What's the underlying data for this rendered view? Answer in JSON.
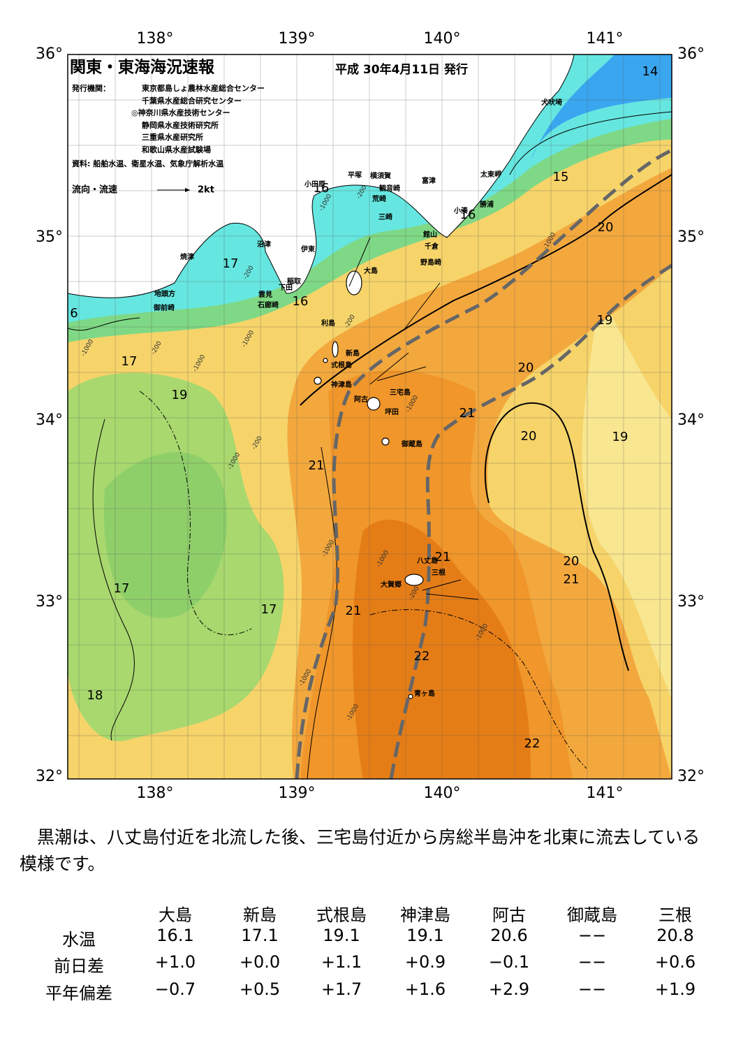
{
  "header": {
    "title": "関東・東海海況速報",
    "issue_date": "平成 30年4月11日 発行",
    "publishers_label": "発行機関：",
    "publishers": [
      "東京都島しょ農林水産総合センター",
      "千葉県水産総合研究センター",
      "◎神奈川県水産技術センター",
      "静岡県水産技術研究所",
      "三重県水産研究所",
      "和歌山県水産試験場"
    ],
    "sources": "資料: 船舶水温、衛星水温、気象庁解析水温",
    "current_legend": "流向・流速",
    "current_scale": "2kt"
  },
  "map": {
    "lon_labels": [
      "138°",
      "139°",
      "140°",
      "141°"
    ],
    "lat_labels": [
      "36°",
      "35°",
      "34°",
      "33°",
      "32°"
    ],
    "isotherm_labels": [
      14,
      15,
      16,
      16,
      20,
      17,
      16,
      6,
      19,
      17,
      20,
      19,
      21,
      20,
      19,
      21,
      21,
      20,
      21,
      17,
      17,
      21,
      22,
      18,
      22
    ],
    "place_names": [
      "犬吠埼",
      "太東岬",
      "勝浦",
      "小湊",
      "富津",
      "館山",
      "千倉",
      "野島崎",
      "横須賀",
      "観音崎",
      "荒崎",
      "三崎",
      "平塚",
      "小田原",
      "沼津",
      "伊東",
      "焼津",
      "大島",
      "稲取",
      "下田",
      "雲見",
      "石廊崎",
      "地頭方",
      "御前崎",
      "利島",
      "新島",
      "式根島",
      "神津島",
      "三宅島",
      "阿古",
      "坪田",
      "御蔵島",
      "八丈島",
      "三根",
      "大賀郷",
      "青ヶ島"
    ],
    "depth_labels": [
      "-200",
      "-200",
      "-200",
      "-200",
      "-200",
      "-200",
      "-1000",
      "-1000",
      "-1000",
      "-1000",
      "-1000",
      "-1000",
      "-1000",
      "-1000",
      "-1000",
      "-1000",
      "-1000",
      "-1000"
    ]
  },
  "note": "黒潮は、八丈島付近を北流した後、三宅島付近から房総半島沖を北東に流去している模様です。",
  "table": {
    "columns": [
      "大島",
      "新島",
      "式根島",
      "神津島",
      "阿古",
      "御蔵島",
      "三根"
    ],
    "rows": [
      {
        "label": "水温",
        "values": [
          "16.1",
          "17.1",
          "19.1",
          "19.1",
          "20.6",
          "−−",
          "20.8"
        ]
      },
      {
        "label": "前日差",
        "values": [
          "+1.0",
          "+0.0",
          "+1.1",
          "+0.9",
          "−0.1",
          "−−",
          "+0.6"
        ]
      },
      {
        "label": "平年偏差",
        "values": [
          "−0.7",
          "+0.5",
          "+1.7",
          "+1.6",
          "+2.9",
          "−−",
          "+1.9"
        ]
      }
    ]
  }
}
